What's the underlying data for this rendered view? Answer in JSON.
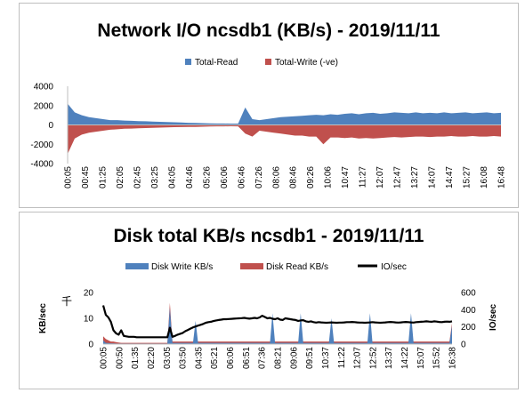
{
  "chart_data": [
    {
      "type": "area",
      "title": "Network I/O ncsdb1 (KB/s) - 2019/11/11",
      "legend_position": "top",
      "series": [
        {
          "name": "Total-Read",
          "color": "#4f81bd",
          "values": [
            2200,
            1300,
            1000,
            800,
            700,
            600,
            500,
            500,
            450,
            420,
            400,
            380,
            350,
            320,
            300,
            280,
            250,
            220,
            200,
            180,
            160,
            150,
            150,
            140,
            140,
            1800,
            600,
            500,
            600,
            700,
            800,
            850,
            900,
            950,
            1000,
            1050,
            1000,
            1100,
            1050,
            1150,
            1200,
            1100,
            1200,
            1250,
            1150,
            1200,
            1300,
            1250,
            1200,
            1300,
            1200,
            1250,
            1200,
            1300,
            1200,
            1250,
            1300,
            1200,
            1250,
            1300,
            1200,
            1250
          ]
        },
        {
          "name": "Total-Write (-ve)",
          "color": "#c0504d",
          "values": [
            -3000,
            -1400,
            -1000,
            -800,
            -700,
            -600,
            -500,
            -450,
            -400,
            -380,
            -350,
            -320,
            -300,
            -280,
            -250,
            -230,
            -220,
            -200,
            -200,
            -180,
            -160,
            -150,
            -150,
            -140,
            -150,
            -900,
            -1200,
            -600,
            -700,
            -800,
            -900,
            -1000,
            -1100,
            -1100,
            -1200,
            -1200,
            -2000,
            -1300,
            -1300,
            -1350,
            -1300,
            -1400,
            -1350,
            -1400,
            -1350,
            -1300,
            -1250,
            -1300,
            -1250,
            -1200,
            -1200,
            -1250,
            -1200,
            -1200,
            -1150,
            -1200,
            -1200,
            -1150,
            -1200,
            -1200,
            -1150,
            -1200
          ]
        }
      ],
      "y_ticks": [
        "4000",
        "2000",
        "0",
        "-2000",
        "-4000"
      ],
      "ylim": [
        -4000,
        4000
      ],
      "x_ticks": [
        "00:05",
        "00:45",
        "01:25",
        "02:05",
        "02:45",
        "03:25",
        "04:05",
        "04:46",
        "05:26",
        "06:06",
        "06:46",
        "07:26",
        "08:06",
        "08:46",
        "09:26",
        "10:06",
        "10:47",
        "11:27",
        "12:07",
        "12:47",
        "13:27",
        "14:07",
        "14:47",
        "15:27",
        "16:08",
        "16:48"
      ],
      "grid": false
    },
    {
      "type": "area",
      "title": "Disk total KB/s ncsdb1 - 2019/11/11",
      "legend_position": "top",
      "series": [
        {
          "name": "Disk Write KB/s",
          "color": "#4f81bd",
          "axis": "left",
          "values": [
            1.5,
            0.5,
            0.4,
            0.3,
            0.3,
            0.2,
            0.2,
            0.2,
            0.2,
            0.2,
            0.2,
            0.2,
            0.2,
            0.2,
            0.2,
            0.2,
            0.2,
            0.2,
            0.2,
            0.2,
            0.2,
            0.2,
            0.2,
            0.2,
            0.2,
            0.2,
            14,
            0.5,
            0.5,
            0.5,
            0.5,
            0.5,
            0.5,
            0.5,
            0.5,
            0.5,
            9,
            0.5,
            0.5,
            0.5,
            0.5,
            0.5,
            0.5,
            0.5,
            0.5,
            0.5,
            0.5,
            0.5,
            0.5,
            0.5,
            0.5,
            0.5,
            0.5,
            0.5,
            0.5,
            0.5,
            0.5,
            0.5,
            0.5,
            0.5,
            0.5,
            0.5,
            0.5,
            0.5,
            0.5,
            0.5,
            12,
            0.5,
            0.5,
            0.5,
            0.5,
            0.5,
            0.5,
            0.5,
            0.5,
            0.5,
            0.5,
            12,
            0.5,
            0.5,
            0.5,
            0.5,
            0.5,
            0.5,
            0.5,
            0.5,
            0.5,
            0.5,
            0.5,
            10,
            0.5,
            0.5,
            0.5,
            0.5,
            0.5,
            0.5,
            0.5,
            0.5,
            0.5,
            0.5,
            0.5,
            0.5,
            0.5,
            0.5,
            12,
            0.5,
            0.5,
            0.5,
            0.5,
            0.5,
            0.5,
            0.5,
            0.5,
            0.5,
            0.5,
            0.5,
            0.5,
            0.5,
            0.5,
            0.5,
            12,
            0.5,
            0.5,
            0.5,
            0.5,
            0.5,
            0.5,
            0.5,
            0.5,
            0.5,
            0.5,
            0.5,
            0.5,
            0.5,
            0.5,
            0.5,
            7
          ]
        },
        {
          "name": "Disk Read KB/s",
          "color": "#c0504d",
          "axis": "left",
          "values": [
            3,
            2,
            1.5,
            1,
            1,
            0.8,
            0.6,
            0.5,
            0.5,
            0.5,
            0.5,
            0.5,
            0.5,
            0.5,
            0.5,
            0.5,
            0.5,
            0.5,
            0.5,
            0.5,
            0.5,
            0.5,
            0.5,
            0.5,
            0.5,
            0.5,
            16,
            1,
            1,
            1,
            1,
            1,
            1,
            1,
            1,
            1,
            2,
            1,
            1,
            1,
            1,
            1,
            1,
            1,
            1,
            1,
            1,
            1,
            1,
            1,
            1,
            1,
            1,
            1,
            1,
            1,
            1,
            1,
            1,
            1,
            1,
            1,
            1,
            1,
            1,
            1,
            2,
            1,
            1,
            1,
            1,
            1,
            1,
            1,
            1,
            1,
            1,
            2,
            1,
            1,
            1,
            1,
            1,
            1,
            1,
            1,
            1,
            1,
            1,
            2,
            1,
            1,
            1,
            1,
            1,
            1,
            1,
            1,
            1,
            1,
            1,
            1,
            1,
            1,
            2,
            1,
            1,
            1,
            1,
            1,
            1,
            1,
            1,
            1,
            1,
            1,
            1,
            1,
            1,
            1,
            2,
            1,
            1,
            1,
            1,
            1,
            1,
            1,
            1,
            1,
            1,
            1,
            1,
            1,
            1,
            1,
            8
          ]
        },
        {
          "name": "IO/sec",
          "color": "#000000",
          "type": "line",
          "axis": "right",
          "values": [
            450,
            340,
            310,
            260,
            160,
            125,
            110,
            160,
            95,
            90,
            85,
            85,
            85,
            80,
            80,
            80,
            80,
            80,
            80,
            80,
            80,
            80,
            80,
            80,
            80,
            80,
            190,
            85,
            95,
            110,
            120,
            130,
            150,
            165,
            180,
            195,
            205,
            215,
            225,
            235,
            248,
            255,
            260,
            268,
            275,
            280,
            285,
            290,
            290,
            292,
            294,
            296,
            298,
            300,
            302,
            305,
            300,
            296,
            300,
            305,
            300,
            310,
            330,
            315,
            300,
            305,
            295,
            290,
            300,
            285,
            280,
            300,
            295,
            290,
            285,
            280,
            270,
            275,
            278,
            265,
            260,
            265,
            255,
            250,
            255,
            252,
            250,
            248,
            250,
            252,
            250,
            248,
            250,
            250,
            252,
            255,
            255,
            258,
            255,
            252,
            250,
            250,
            248,
            250,
            252,
            255,
            252,
            250,
            248,
            250,
            252,
            255,
            258,
            255,
            252,
            250,
            252,
            255,
            258,
            255,
            252,
            250,
            255,
            258,
            260,
            262,
            265,
            262,
            260,
            265,
            262,
            258,
            255,
            260,
            262,
            260,
            265
          ]
        }
      ],
      "ylabel": "KB/sec",
      "y_marker": "千",
      "y2label": "IO/sec",
      "y_ticks": [
        "20",
        "10",
        "0"
      ],
      "ylim": [
        0,
        20
      ],
      "y2_ticks": [
        "600",
        "400",
        "200",
        "0"
      ],
      "y2lim": [
        0,
        600
      ],
      "x_ticks": [
        "00:05",
        "00:50",
        "01:35",
        "02:20",
        "03:05",
        "03:50",
        "04:35",
        "05:21",
        "06:06",
        "06:51",
        "07:36",
        "08:21",
        "09:06",
        "09:51",
        "10:37",
        "11:22",
        "12:07",
        "12:52",
        "13:37",
        "14:22",
        "15:07",
        "15:52",
        "16:38"
      ],
      "grid": false
    }
  ]
}
